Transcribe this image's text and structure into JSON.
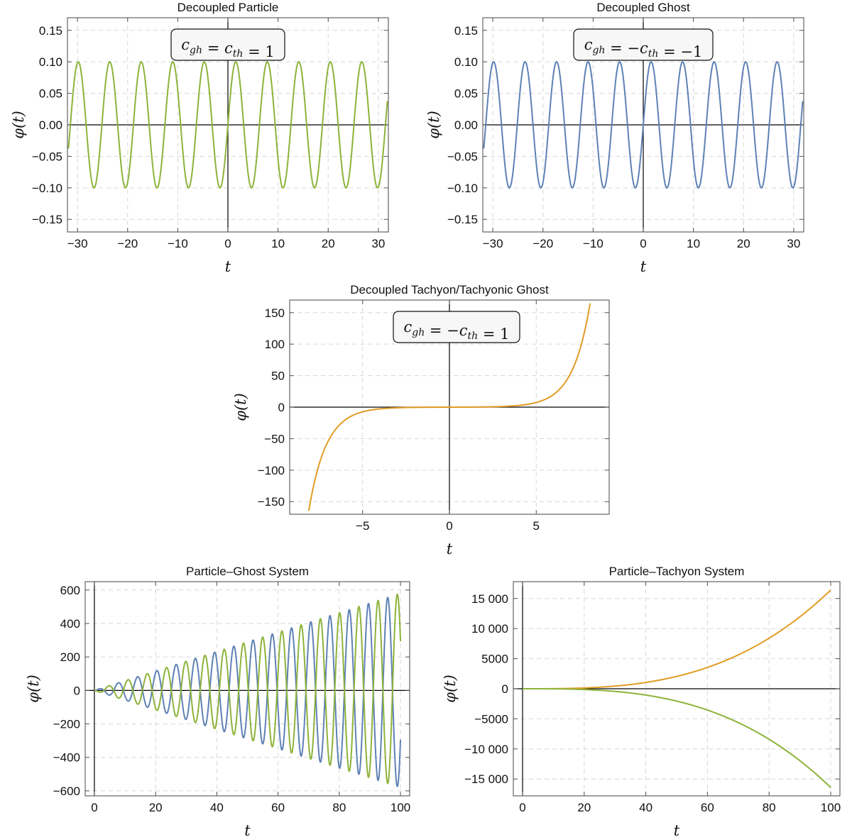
{
  "colors": {
    "particle": "#8db33a",
    "ghost": "#5e81b5",
    "tachyon": "#e19c24"
  },
  "chart_data": [
    {
      "id": "p1",
      "type": "line",
      "title": "Decoupled Particle",
      "xlabel": "t",
      "ylabel": "φ(t)",
      "annotation": "c_gh = c_th = 1",
      "xlim": [
        -32,
        32
      ],
      "ylim": [
        -0.17,
        0.17
      ],
      "xticks": [
        -30,
        -20,
        -10,
        0,
        10,
        20,
        30
      ],
      "xtick_labels": [
        "−30",
        "−20",
        "−10",
        "0",
        "10",
        "20",
        "30"
      ],
      "yticks": [
        0.15,
        0.1,
        0.05,
        0.0,
        -0.05,
        -0.1,
        -0.15
      ],
      "ytick_labels": [
        "0.15",
        "0.10",
        "0.05",
        "0.00",
        "−0.05",
        "−0.10",
        "−0.15"
      ],
      "grid": true,
      "series": [
        {
          "color": "#8db33a",
          "function": "φ(t) = 0.1·sin(t)",
          "t_range": [
            -31.8,
            31.8
          ],
          "amplitude": 0.1,
          "angular_frequency": 1
        }
      ]
    },
    {
      "id": "p2",
      "type": "line",
      "title": "Decoupled Ghost",
      "xlabel": "t",
      "ylabel": "φ(t)",
      "annotation": "c_gh = −c_th = −1",
      "xlim": [
        -32,
        32
      ],
      "ylim": [
        -0.17,
        0.17
      ],
      "xticks": [
        -30,
        -20,
        -10,
        0,
        10,
        20,
        30
      ],
      "xtick_labels": [
        "−30",
        "−20",
        "−10",
        "0",
        "10",
        "20",
        "30"
      ],
      "yticks": [
        0.15,
        0.1,
        0.05,
        0.0,
        -0.05,
        -0.1,
        -0.15
      ],
      "ytick_labels": [
        "0.15",
        "0.10",
        "0.05",
        "0.00",
        "−0.05",
        "−0.10",
        "−0.15"
      ],
      "grid": true,
      "series": [
        {
          "color": "#5e81b5",
          "function": "φ(t) = 0.1·sin(t)",
          "t_range": [
            -31.8,
            31.8
          ],
          "amplitude": 0.1,
          "angular_frequency": 1
        }
      ]
    },
    {
      "id": "p3",
      "type": "line",
      "title": "Decoupled Tachyon/Tachyonic Ghost",
      "xlabel": "t",
      "ylabel": "φ(t)",
      "annotation": "c_gh = −c_th = 1",
      "xlim": [
        -9.2,
        9.2
      ],
      "ylim": [
        -170,
        170
      ],
      "xticks": [
        -5,
        0,
        5
      ],
      "xtick_labels": [
        "−5",
        "0",
        "5"
      ],
      "yticks": [
        150,
        100,
        50,
        0,
        -50,
        -100,
        -150
      ],
      "ytick_labels": [
        "150",
        "100",
        "50",
        "0",
        "−50",
        "−100",
        "−150"
      ],
      "grid": true,
      "series": [
        {
          "color": "#e19c24",
          "function": "φ(t) = 0.1·sinh(t)",
          "t_range": [
            -8.1,
            8.1
          ],
          "amplitude": 0.1
        }
      ]
    },
    {
      "id": "p4",
      "type": "line",
      "title": "Particle–Ghost System",
      "xlabel": "t",
      "ylabel": "φ(t)",
      "xlim": [
        -3,
        103
      ],
      "ylim": [
        -630,
        650
      ],
      "xticks": [
        0,
        20,
        40,
        60,
        80,
        100
      ],
      "xtick_labels": [
        "0",
        "20",
        "40",
        "60",
        "80",
        "100"
      ],
      "yticks": [
        600,
        400,
        200,
        0,
        -200,
        -400,
        -600
      ],
      "ytick_labels": [
        "600",
        "400",
        "200",
        "0",
        "−200",
        "−400",
        "−600"
      ],
      "grid": true,
      "series": [
        {
          "color": "#5e81b5",
          "function": "φ(t) = 5.8·t·sin(t)",
          "t_range": [
            0,
            100
          ]
        },
        {
          "color": "#8db33a",
          "function": "φ(t) = −5.8·t·sin(t)",
          "t_range": [
            0,
            100
          ]
        }
      ]
    },
    {
      "id": "p5",
      "type": "line",
      "title": "Particle–Tachyon System",
      "xlabel": "t",
      "ylabel": "φ(t)",
      "xlim": [
        -3,
        103
      ],
      "ylim": [
        -17800,
        17800
      ],
      "xticks": [
        0,
        20,
        40,
        60,
        80,
        100
      ],
      "xtick_labels": [
        "0",
        "20",
        "40",
        "60",
        "80",
        "100"
      ],
      "yticks": [
        15000,
        10000,
        5000,
        0,
        -5000,
        -10000,
        -15000
      ],
      "ytick_labels": [
        "15 000",
        "10 000",
        "5000",
        "0",
        "−5000",
        "−10 000",
        "−15 000"
      ],
      "grid": true,
      "series": [
        {
          "color": "#e19c24",
          "function": "φ(t) ≈ 0.0164·t³",
          "t_range": [
            0,
            100
          ],
          "value_at_100": 16400
        },
        {
          "color": "#8db33a",
          "function": "φ(t) ≈ −0.0164·t³",
          "t_range": [
            0,
            100
          ],
          "value_at_100": -16400
        }
      ]
    }
  ]
}
